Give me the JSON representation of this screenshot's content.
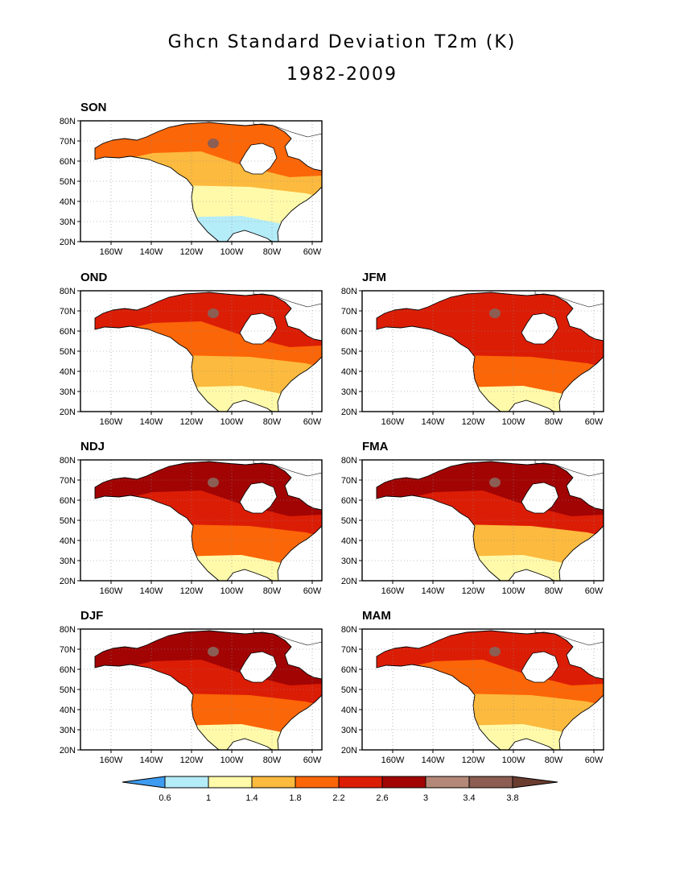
{
  "title": "Ghcn Standard Deviation T2m (K)",
  "subtitle": "1982-2009",
  "lat_labels": [
    "80N",
    "70N",
    "60N",
    "50N",
    "40N",
    "30N",
    "20N"
  ],
  "lon_labels": [
    "160W",
    "140W",
    "120W",
    "100W",
    "80W",
    "60W"
  ],
  "colorbar": {
    "levels": [
      "0.6",
      "1",
      "1.4",
      "1.8",
      "2.2",
      "2.6",
      "3",
      "3.4",
      "3.8"
    ],
    "colors": [
      "#3d9cf0",
      "#b4ecf8",
      "#fffaaa",
      "#fcba3e",
      "#fb6608",
      "#dc1d06",
      "#a20404",
      "#b48878",
      "#8c5d52",
      "#6a3c30"
    ]
  },
  "panels": [
    {
      "label": "SON"
    },
    {
      "label": "OND"
    },
    {
      "label": "JFM"
    },
    {
      "label": "NDJ"
    },
    {
      "label": "FMA"
    },
    {
      "label": "DJF"
    },
    {
      "label": "MAM"
    }
  ]
}
